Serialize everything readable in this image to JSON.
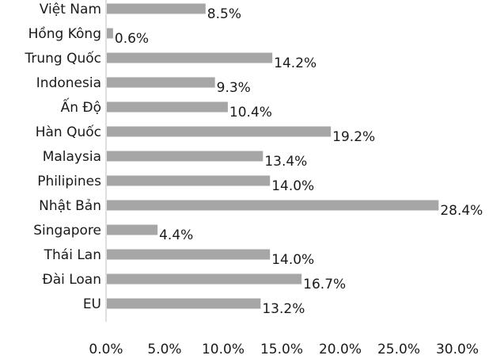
{
  "chart_data": {
    "type": "bar",
    "orientation": "horizontal",
    "title": "",
    "xlabel": "",
    "ylabel": "",
    "categories": [
      "Việt Nam",
      "Hồng Kông",
      "Trung Quốc",
      "Indonesia",
      "Ấn Độ",
      "Hàn Quốc",
      "Malaysia",
      "Philipines",
      "Nhật Bản",
      "Singapore",
      "Thái Lan",
      "Đài Loan",
      "EU"
    ],
    "values": [
      8.5,
      0.6,
      14.2,
      9.3,
      10.4,
      19.2,
      13.4,
      14.0,
      28.4,
      4.4,
      14.0,
      16.7,
      13.2
    ],
    "value_labels": [
      "8.5%",
      "0.6%",
      "14.2%",
      "9.3%",
      "10.4%",
      "19.2%",
      "13.4%",
      "14.0%",
      "28.4%",
      "4.4%",
      "14.0%",
      "16.7%",
      "13.2%"
    ],
    "xlim": [
      0,
      30
    ],
    "x_ticks": [
      0,
      5,
      10,
      15,
      20,
      25,
      30
    ],
    "x_tick_labels": [
      "0.0%",
      "5.0%",
      "10.0%",
      "15.0%",
      "20.0%",
      "25.0%",
      "30.0%"
    ],
    "grid": false,
    "legend": "none",
    "bar_color": "#a6a6a6",
    "axis_color": "#bfbfbf",
    "text_color": "#1a1a1a"
  }
}
